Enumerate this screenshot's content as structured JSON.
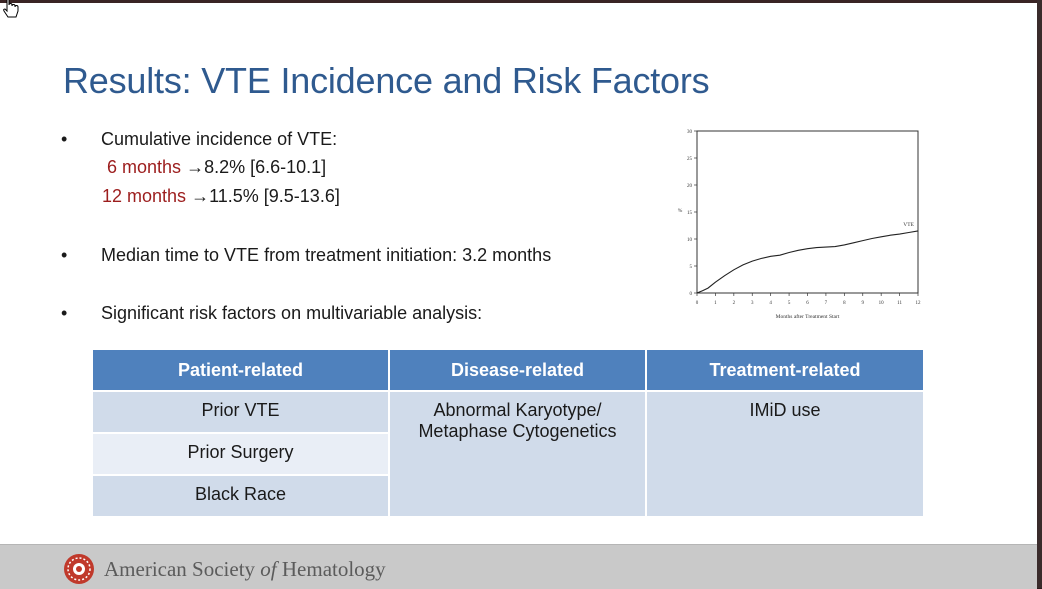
{
  "slide": {
    "title": "Results: VTE Incidence and Risk Factors",
    "bullets": [
      {
        "text": "Cumulative incidence of VTE:",
        "sub": [
          {
            "label": "6 months",
            "value": "8.2% [6.6-10.1]"
          },
          {
            "label": "12 months",
            "value": "11.5% [9.5-13.6]"
          }
        ]
      },
      {
        "text": "Median time to VTE from treatment initiation: 3.2 months"
      },
      {
        "text": "Significant risk factors on multivariable analysis:"
      }
    ],
    "arrow": "→"
  },
  "chart_data": {
    "type": "line",
    "title": "",
    "xlabel": "Months after Treatment Start",
    "ylabel": "%",
    "xlim": [
      0,
      12
    ],
    "ylim": [
      0,
      30
    ],
    "xticks": [
      "0",
      "1",
      "2",
      "3",
      "4",
      "5",
      "6",
      "7",
      "8",
      "9",
      "10",
      "11",
      "12"
    ],
    "yticks": [
      "0",
      "5",
      "10",
      "15",
      "20",
      "25",
      "30"
    ],
    "series": [
      {
        "name": "VTE",
        "x": [
          0,
          0.3,
          0.6,
          1,
          1.5,
          2,
          2.5,
          3,
          3.5,
          4,
          4.5,
          5,
          5.5,
          6,
          6.5,
          7,
          7.5,
          8,
          8.5,
          9,
          9.5,
          10,
          10.5,
          11,
          11.5,
          12
        ],
        "y": [
          0,
          0.4,
          0.9,
          2.0,
          3.2,
          4.3,
          5.2,
          5.9,
          6.4,
          6.8,
          7.0,
          7.5,
          7.9,
          8.2,
          8.4,
          8.5,
          8.6,
          8.9,
          9.3,
          9.7,
          10.1,
          10.4,
          10.7,
          10.9,
          11.2,
          11.5
        ]
      }
    ]
  },
  "table": {
    "headers": [
      "Patient-related",
      "Disease-related",
      "Treatment-related"
    ],
    "patient": [
      "Prior VTE",
      "Prior Surgery",
      "Black Race"
    ],
    "disease": [
      "Abnormal Karyotype/",
      "Metaphase Cytogenetics"
    ],
    "treatment": [
      "IMiD use"
    ]
  },
  "footer": {
    "org_start": "American Society ",
    "org_of": "of",
    "org_end": " Hematology"
  },
  "colors": {
    "title": "#2f5a8f",
    "highlight": "#9c1d1d",
    "table_header": "#4f81bd",
    "table_cell_dark": "#d0dbea",
    "table_cell_light": "#e9eef6",
    "logo": "#c0392b"
  }
}
